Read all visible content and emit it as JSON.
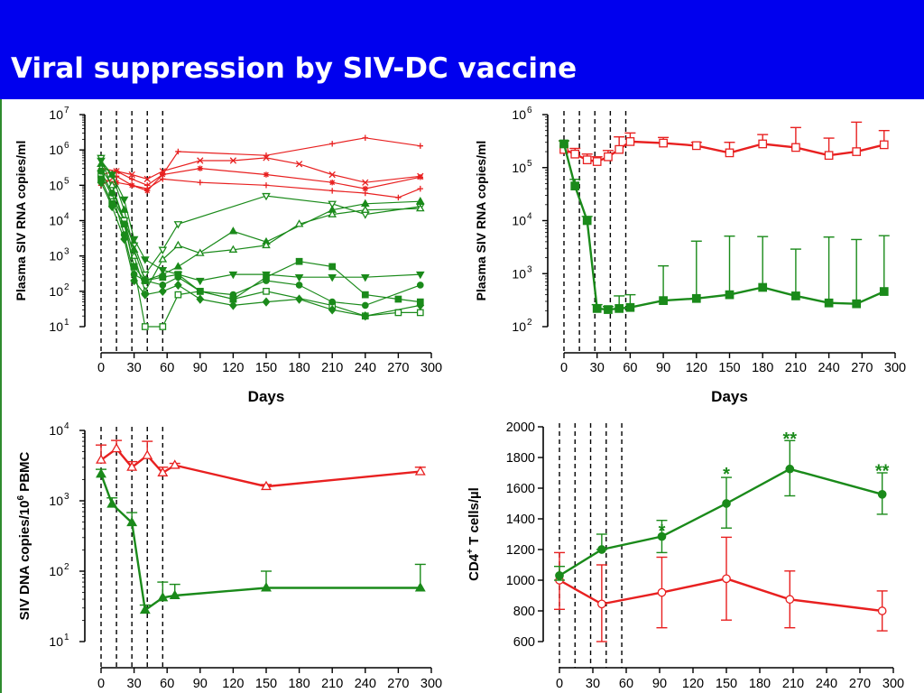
{
  "slide": {
    "title": "Viral suppression by SIV-DC vaccine"
  },
  "colors": {
    "background": "#ffffff",
    "title_bar": "#0000ee",
    "title_text": "#ffffff",
    "vaccinated": "#1a8a1a",
    "control": "#e82020"
  },
  "chart_data": [
    {
      "id": "A",
      "type": "line",
      "ylabel": "Plasma SIV RNA copies/ml",
      "xlabel": "Days",
      "yscale": "log",
      "ylim": [
        10,
        10000000
      ],
      "xlim": [
        0,
        300
      ],
      "xticks": [
        "0",
        "30",
        "60",
        "90",
        "120",
        "150",
        "180",
        "210",
        "240",
        "270",
        "300"
      ],
      "ytick_mantissa": [
        "10",
        "10",
        "10",
        "10",
        "10",
        "10",
        "10"
      ],
      "ytick_exponent": [
        "1",
        "2",
        "3",
        "4",
        "5",
        "6",
        "7"
      ],
      "vlines": [
        0,
        14,
        28,
        42,
        56
      ],
      "series": [
        {
          "group": "control",
          "marker": "plus",
          "x": [
            0,
            14,
            28,
            42,
            56,
            70,
            150,
            210,
            240,
            290
          ],
          "y": [
            300000,
            250000,
            150000,
            100000,
            200000,
            900000,
            700000,
            1500000,
            2200000,
            1300000
          ]
        },
        {
          "group": "control",
          "marker": "x",
          "x": [
            0,
            14,
            28,
            42,
            56,
            90,
            120,
            150,
            180,
            210,
            240,
            290
          ],
          "y": [
            200000,
            250000,
            200000,
            150000,
            250000,
            500000,
            500000,
            600000,
            400000,
            200000,
            120000,
            180000
          ]
        },
        {
          "group": "control",
          "marker": "star",
          "x": [
            0,
            14,
            28,
            42,
            56,
            90,
            150,
            210,
            240,
            290
          ],
          "y": [
            150000,
            120000,
            100000,
            70000,
            200000,
            300000,
            200000,
            120000,
            80000,
            170000
          ]
        },
        {
          "group": "control",
          "marker": "plus",
          "x": [
            0,
            14,
            28,
            42,
            56,
            90,
            150,
            210,
            240,
            270,
            290
          ],
          "y": [
            100000,
            180000,
            100000,
            80000,
            150000,
            120000,
            100000,
            70000,
            60000,
            45000,
            80000
          ]
        },
        {
          "group": "vaccinated",
          "marker": "triangle-down-open",
          "x": [
            0,
            10,
            21,
            30,
            40,
            56,
            70,
            150,
            210,
            240,
            290
          ],
          "y": [
            600000,
            80000,
            10000,
            2000,
            300,
            1500,
            8000,
            50000,
            30000,
            15000,
            25000
          ]
        },
        {
          "group": "vaccinated",
          "marker": "triangle-up",
          "x": [
            0,
            10,
            21,
            30,
            40,
            56,
            70,
            120,
            150,
            210,
            240,
            290
          ],
          "y": [
            400000,
            200000,
            20000,
            1500,
            200,
            300,
            500,
            5000,
            2500,
            20000,
            30000,
            35000
          ]
        },
        {
          "group": "vaccinated",
          "marker": "triangle-up-open",
          "x": [
            0,
            10,
            21,
            30,
            40,
            56,
            70,
            90,
            120,
            150,
            180,
            210,
            240,
            290
          ],
          "y": [
            300000,
            100000,
            10000,
            1000,
            100,
            800,
            2000,
            1200,
            1500,
            2000,
            8000,
            15000,
            20000,
            22000
          ]
        },
        {
          "group": "vaccinated",
          "marker": "square-open",
          "x": [
            0,
            10,
            21,
            30,
            40,
            56,
            70,
            90,
            120,
            150,
            210,
            240,
            270,
            290
          ],
          "y": [
            200000,
            50000,
            10000,
            500,
            10,
            10,
            80,
            100,
            60,
            100,
            40,
            20,
            25,
            25
          ]
        },
        {
          "group": "vaccinated",
          "marker": "square",
          "x": [
            0,
            10,
            21,
            30,
            40,
            56,
            70,
            90,
            120,
            150,
            180,
            210,
            240,
            270,
            290
          ],
          "y": [
            150000,
            30000,
            8000,
            500,
            200,
            250,
            300,
            100,
            60,
            250,
            700,
            500,
            80,
            60,
            50
          ]
        },
        {
          "group": "vaccinated",
          "marker": "triangle-down",
          "x": [
            0,
            10,
            21,
            30,
            40,
            56,
            70,
            90,
            120,
            150,
            180,
            210,
            240,
            290
          ],
          "y": [
            500000,
            200000,
            40000,
            3000,
            800,
            400,
            300,
            200,
            300,
            300,
            250,
            250,
            250,
            300
          ]
        },
        {
          "group": "vaccinated",
          "marker": "circle",
          "x": [
            0,
            10,
            21,
            30,
            40,
            56,
            70,
            90,
            120,
            150,
            180,
            210,
            240,
            290
          ],
          "y": [
            250000,
            60000,
            4000,
            300,
            200,
            150,
            250,
            100,
            80,
            200,
            150,
            50,
            40,
            150
          ]
        },
        {
          "group": "vaccinated",
          "marker": "diamond",
          "x": [
            0,
            10,
            21,
            30,
            40,
            56,
            70,
            90,
            120,
            150,
            180,
            210,
            240,
            290
          ],
          "y": [
            120000,
            25000,
            3000,
            200,
            80,
            100,
            150,
            60,
            40,
            50,
            60,
            30,
            20,
            40
          ]
        }
      ]
    },
    {
      "id": "B",
      "type": "line",
      "ylabel": "Plasma SIV RNA copies/ml",
      "xlabel": "Days",
      "yscale": "log",
      "ylim": [
        100,
        1000000
      ],
      "xlim": [
        0,
        300
      ],
      "xticks": [
        "0",
        "30",
        "60",
        "90",
        "120",
        "150",
        "180",
        "210",
        "240",
        "270",
        "300"
      ],
      "ytick_mantissa": [
        "10",
        "10",
        "10",
        "10",
        "10"
      ],
      "ytick_exponent": [
        "2",
        "3",
        "4",
        "5",
        "6"
      ],
      "vlines": [
        0,
        14,
        28,
        42,
        56
      ],
      "series": [
        {
          "group": "control",
          "marker": "square-open",
          "x": [
            0,
            10,
            21,
            30,
            40,
            50,
            60,
            90,
            120,
            150,
            180,
            210,
            240,
            265,
            290
          ],
          "y": [
            220000,
            180000,
            140000,
            130000,
            160000,
            220000,
            310000,
            290000,
            260000,
            190000,
            280000,
            240000,
            170000,
            200000,
            270000
          ],
          "err_hi": [
            320000,
            230000,
            180000,
            160000,
            210000,
            380000,
            450000,
            370000,
            300000,
            300000,
            420000,
            570000,
            360000,
            720000,
            500000
          ]
        },
        {
          "group": "vaccinated",
          "marker": "square",
          "x": [
            0,
            10,
            21,
            30,
            40,
            50,
            60,
            90,
            120,
            150,
            180,
            210,
            240,
            265,
            290
          ],
          "y": [
            280000,
            45000,
            10000,
            220,
            210,
            220,
            230,
            310,
            340,
            400,
            550,
            380,
            280,
            270,
            460
          ],
          "err_hi": [
            320000,
            60000,
            12000,
            260,
            240,
            380,
            400,
            1400,
            4100,
            5100,
            5000,
            2900,
            4900,
            4400,
            5200
          ]
        }
      ]
    },
    {
      "id": "C",
      "type": "line",
      "ylabel": "SIV DNA copies/10",
      "ylabel_sup": "6",
      "ylabel_tail": " PBMC",
      "yscale": "log",
      "ylim": [
        10,
        10000
      ],
      "xlim": [
        0,
        300
      ],
      "xticks": [
        "0",
        "30",
        "60",
        "90",
        "120",
        "150",
        "180",
        "210",
        "240",
        "270",
        "300"
      ],
      "ytick_mantissa": [
        "10",
        "10",
        "10",
        "10"
      ],
      "ytick_exponent": [
        "1",
        "2",
        "3",
        "4"
      ],
      "vlines": [
        0,
        14,
        28,
        42,
        56
      ],
      "series": [
        {
          "group": "control",
          "marker": "triangle-up-open",
          "x": [
            0,
            14,
            28,
            42,
            56,
            67,
            150,
            290
          ],
          "y": [
            3800,
            5500,
            3000,
            4400,
            2500,
            3200,
            1600,
            2600
          ],
          "err_hi": [
            6200,
            7200,
            3600,
            7000,
            3000,
            3400,
            1700,
            3000
          ]
        },
        {
          "group": "vaccinated",
          "marker": "triangle-up",
          "x": [
            0,
            10,
            28,
            40,
            56,
            67,
            150,
            290
          ],
          "y": [
            2400,
            900,
            490,
            28,
            42,
            45,
            58,
            58
          ],
          "err_hi": [
            2800,
            1100,
            680,
            33,
            70,
            65,
            100,
            125
          ]
        }
      ]
    },
    {
      "id": "D",
      "type": "line",
      "ylabel": "CD4",
      "ylabel_sup": "+",
      "ylabel_tail": " T cells/µl",
      "yscale": "linear",
      "ylim": [
        600,
        2000
      ],
      "xlim": [
        0,
        300
      ],
      "xticks": [
        "0",
        "30",
        "60",
        "90",
        "120",
        "150",
        "180",
        "210",
        "240",
        "270",
        "300"
      ],
      "yticks": [
        "600",
        "800",
        "1000",
        "1200",
        "1400",
        "1600",
        "1800",
        "2000"
      ],
      "vlines": [
        0,
        14,
        28,
        42,
        56
      ],
      "series": [
        {
          "group": "control",
          "marker": "circle-open",
          "x": [
            0,
            38,
            92,
            150,
            207,
            290
          ],
          "y": [
            1000,
            845,
            920,
            1010,
            875,
            800
          ],
          "err_hi": [
            1180,
            1100,
            1150,
            1280,
            1060,
            930
          ],
          "err_lo": [
            810,
            600,
            690,
            740,
            690,
            670
          ]
        },
        {
          "group": "vaccinated",
          "marker": "circle",
          "x": [
            0,
            38,
            92,
            150,
            207,
            290
          ],
          "y": [
            1030,
            1200,
            1285,
            1500,
            1725,
            1560
          ],
          "err_hi": [
            1090,
            1300,
            1390,
            1670,
            1910,
            1700
          ],
          "err_lo": [
            1000,
            1200,
            1180,
            1340,
            1550,
            1430
          ]
        }
      ],
      "annotations": [
        {
          "text": "*",
          "x": 92,
          "y": 1330
        },
        {
          "text": "*",
          "x": 150,
          "y": 1700
        },
        {
          "text": "**",
          "x": 207,
          "y": 1930
        },
        {
          "text": "**",
          "x": 290,
          "y": 1720
        }
      ]
    }
  ]
}
